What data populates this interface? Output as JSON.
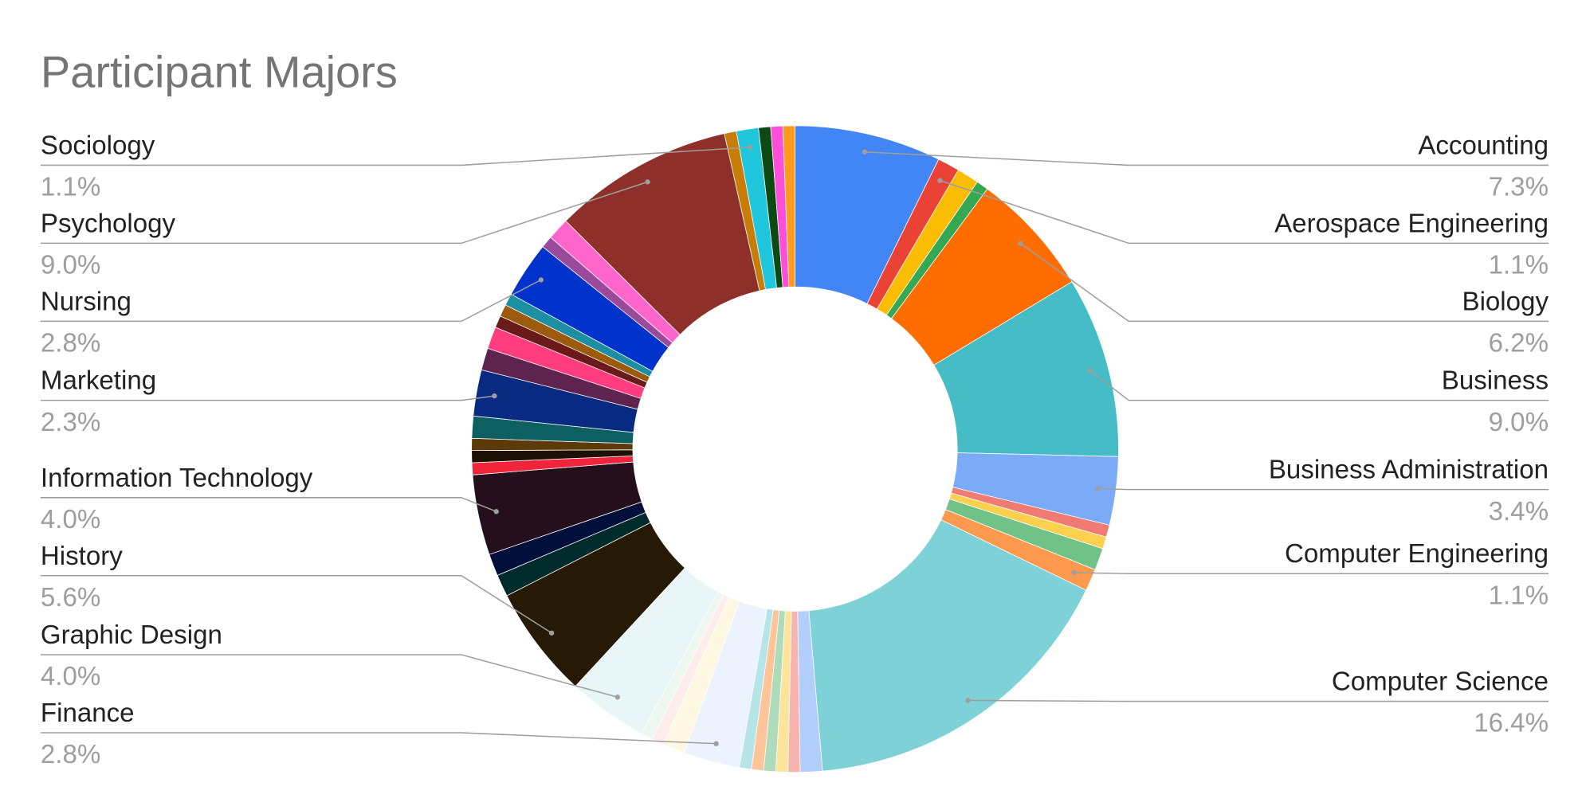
{
  "chart_data": {
    "type": "donut",
    "title": "Participant Majors",
    "categories": [
      "Accounting",
      "Aerospace Engineering",
      null,
      null,
      "Biology",
      "Business",
      "Business Administration",
      null,
      null,
      null,
      "Computer Engineering",
      "Computer Science",
      null,
      null,
      null,
      null,
      null,
      null,
      "Finance",
      null,
      null,
      null,
      "Graphic Design",
      "History",
      null,
      null,
      "Information Technology",
      null,
      null,
      null,
      null,
      "Marketing",
      null,
      null,
      null,
      null,
      null,
      "Nursing",
      null,
      null,
      "Psychology",
      null,
      "Sociology",
      null,
      null,
      null
    ],
    "values": [
      7.3,
      1.1,
      1.1,
      0.6,
      6.2,
      9.0,
      3.4,
      0.6,
      0.6,
      1.1,
      1.1,
      16.4,
      1.1,
      0.6,
      0.6,
      0.6,
      0.6,
      0.6,
      2.8,
      1.1,
      0.6,
      0.6,
      4.0,
      5.6,
      1.1,
      1.1,
      4.0,
      0.6,
      0.6,
      0.6,
      1.1,
      2.3,
      1.1,
      1.1,
      0.6,
      0.6,
      0.6,
      2.8,
      0.6,
      1.1,
      9.0,
      0.6,
      1.1,
      0.6,
      0.6,
      0.6
    ],
    "value_labels": [
      "7.3%",
      "1.1%",
      null,
      null,
      "6.2%",
      "9.0%",
      "3.4%",
      null,
      null,
      null,
      "1.1%",
      "16.4%",
      null,
      null,
      null,
      null,
      null,
      null,
      "2.8%",
      null,
      null,
      null,
      "4.0%",
      "5.6%",
      null,
      null,
      "4.0%",
      null,
      null,
      null,
      null,
      "2.3%",
      null,
      null,
      null,
      null,
      null,
      "2.8%",
      null,
      null,
      "9.0%",
      null,
      "1.1%",
      null,
      null,
      null
    ],
    "colors": [
      "#4285f4",
      "#ea4335",
      "#fbbc04",
      "#34a853",
      "#ff6d01",
      "#46bdc6",
      "#7baaf7",
      "#f07b72",
      "#fcd04f",
      "#71c287",
      "#ff994d",
      "#7ed1d7",
      "#b3cefb",
      "#f7b4ae",
      "#fde49b",
      "#aedcba",
      "#ffc599",
      "#b5e5e8",
      "#ecf3fe",
      "#fef8e3",
      "#fdeeec",
      "#eef7f0",
      "#e9f6f7",
      "#261a06",
      "#012a2d",
      "#020f3a",
      "#250f1d",
      "#f2243b",
      "#1e1005",
      "#5c3a0a",
      "#0e5f62",
      "#082a80",
      "#5f2350",
      "#ff3d7f",
      "#6b1a1a",
      "#9b5a0c",
      "#1e8fa3",
      "#0033cc",
      "#9a4a9a",
      "#ff66cc",
      "#8e3029",
      "#c77d07",
      "#1fc6dc",
      "#0b4a12",
      "#ff4fd8",
      "#ff9a1f"
    ]
  }
}
